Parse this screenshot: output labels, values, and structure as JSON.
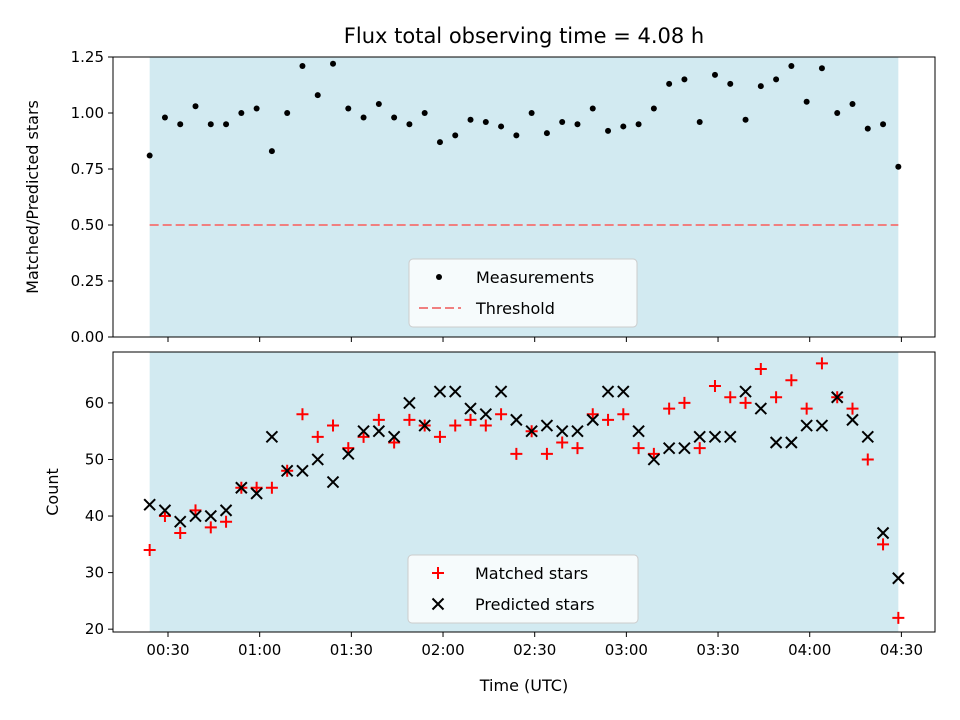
{
  "chart_data": {
    "title": "Flux total observing time = 4.08 h",
    "xlabel": "Time (UTC)",
    "x_unit": "minutes after 00:00 UTC",
    "x_ticks": [
      "00:30",
      "01:00",
      "01:30",
      "02:00",
      "02:30",
      "03:00",
      "03:30",
      "04:00",
      "04:30"
    ],
    "x_tick_values": [
      30,
      60,
      90,
      120,
      150,
      180,
      210,
      240,
      270
    ],
    "xlim": [
      12,
      281
    ],
    "observing_window": [
      24,
      269
    ],
    "observing_window_color": "#add8e6",
    "x": [
      24,
      29,
      34,
      39,
      44,
      49,
      54,
      59,
      64,
      69,
      74,
      79,
      84,
      89,
      94,
      99,
      104,
      109,
      114,
      119,
      124,
      129,
      134,
      139,
      144,
      149,
      154,
      159,
      164,
      169,
      174,
      179,
      184,
      189,
      194,
      199,
      204,
      209,
      214,
      219,
      224,
      229,
      234,
      239,
      244,
      249,
      254,
      259,
      264,
      269
    ],
    "top": {
      "type": "scatter",
      "ylabel": "Matched/Predicted stars",
      "ylim": [
        0,
        1.25
      ],
      "y_ticks": [
        "0.00",
        "0.25",
        "0.50",
        "0.75",
        "1.00",
        "1.25"
      ],
      "y_tick_values": [
        0,
        0.25,
        0.5,
        0.75,
        1.0,
        1.25
      ],
      "threshold": 0.5,
      "threshold_color": "#f08080",
      "series": [
        {
          "name": "Measurements",
          "color": "#000000",
          "values": [
            0.81,
            0.98,
            0.95,
            1.03,
            0.95,
            0.95,
            1.0,
            1.02,
            0.83,
            1.0,
            1.21,
            1.08,
            1.22,
            1.02,
            0.98,
            1.04,
            0.98,
            0.95,
            1.0,
            0.87,
            0.9,
            0.97,
            0.96,
            0.94,
            0.9,
            1.0,
            0.91,
            0.96,
            0.95,
            1.02,
            0.92,
            0.94,
            0.95,
            1.02,
            1.13,
            1.15,
            0.96,
            1.17,
            1.13,
            0.97,
            1.12,
            1.15,
            1.21,
            1.05,
            1.2,
            1.0,
            1.04,
            0.93,
            0.95,
            0.76
          ]
        }
      ],
      "legend": [
        "Measurements",
        "Threshold"
      ]
    },
    "bottom": {
      "type": "scatter",
      "ylabel": "Count",
      "ylim": [
        19.5,
        69
      ],
      "y_ticks": [
        "20",
        "30",
        "40",
        "50",
        "60"
      ],
      "y_tick_values": [
        20,
        30,
        40,
        50,
        60
      ],
      "series": [
        {
          "name": "Matched stars",
          "marker": "+",
          "color": "#ff0000",
          "values": [
            34,
            40,
            37,
            41,
            38,
            39,
            45,
            45,
            45,
            48,
            58,
            54,
            56,
            52,
            54,
            57,
            53,
            57,
            56,
            54,
            56,
            57,
            56,
            58,
            51,
            55,
            51,
            53,
            52,
            58,
            57,
            58,
            52,
            51,
            59,
            60,
            52,
            63,
            61,
            60,
            66,
            61,
            64,
            59,
            67,
            61,
            59,
            50,
            35,
            22
          ]
        },
        {
          "name": "Predicted stars",
          "marker": "x",
          "color": "#000000",
          "values": [
            42,
            41,
            39,
            40,
            40,
            41,
            45,
            44,
            54,
            48,
            48,
            50,
            46,
            51,
            55,
            55,
            54,
            60,
            56,
            62,
            62,
            59,
            58,
            62,
            57,
            55,
            56,
            55,
            55,
            57,
            62,
            62,
            55,
            50,
            52,
            52,
            54,
            54,
            54,
            62,
            59,
            53,
            53,
            56,
            56,
            61,
            57,
            54,
            37,
            29
          ]
        }
      ],
      "legend": [
        "Matched stars",
        "Predicted stars"
      ]
    }
  }
}
